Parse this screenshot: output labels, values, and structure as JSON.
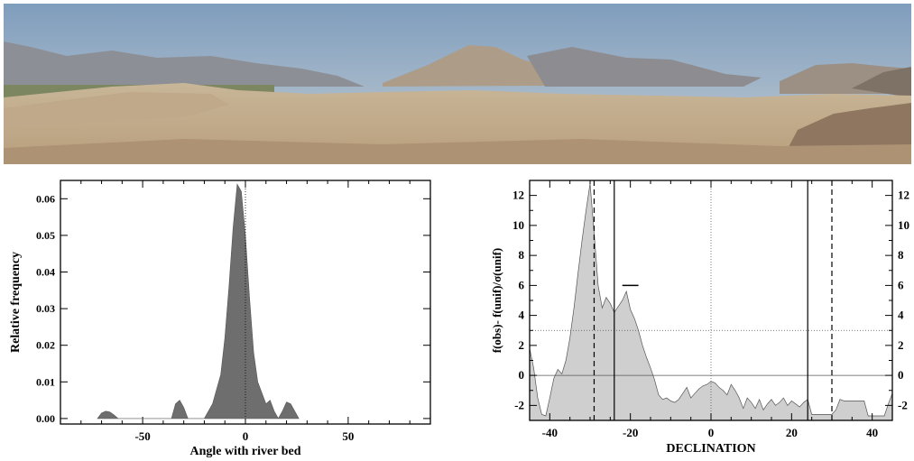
{
  "chart_data": [
    {
      "type": "area",
      "title": "",
      "xlabel": "Angle with river bed",
      "ylabel": "Relative frequency",
      "xlim": [
        -90,
        90
      ],
      "ylim": [
        -0.0015,
        0.065
      ],
      "xticks": [
        -50,
        0,
        50
      ],
      "yticks": [
        0.0,
        0.01,
        0.02,
        0.03,
        0.04,
        0.05,
        0.06
      ],
      "ytick_labels": [
        "0.00",
        "0.01",
        "0.02",
        "0.03",
        "0.04",
        "0.05",
        "0.06"
      ],
      "vline_dotted": 0,
      "color": "#6e6e6e",
      "x": [
        -72,
        -70,
        -68,
        -66,
        -64,
        -62,
        -36,
        -34,
        -32,
        -30,
        -28,
        -20,
        -16,
        -12,
        -10,
        -8,
        -6,
        -4,
        -2,
        0,
        2,
        4,
        6,
        8,
        10,
        12,
        14,
        16,
        18,
        20,
        22,
        24,
        26
      ],
      "y": [
        0.0,
        0.0015,
        0.002,
        0.0018,
        0.001,
        0.0,
        0.0,
        0.004,
        0.005,
        0.003,
        0.0,
        0.0,
        0.004,
        0.012,
        0.022,
        0.036,
        0.052,
        0.064,
        0.062,
        0.05,
        0.033,
        0.018,
        0.01,
        0.007,
        0.004,
        0.005,
        0.002,
        0.0,
        0.002,
        0.0045,
        0.004,
        0.002,
        0.0
      ]
    },
    {
      "type": "area",
      "title": "",
      "xlabel": "DECLINATION",
      "ylabel": "f(obs)- f(unif)/σ(unif)",
      "xlim": [
        -45,
        45
      ],
      "ylim": [
        -3,
        13
      ],
      "xticks": [
        -40,
        -20,
        0,
        20,
        40
      ],
      "yticks": [
        -2,
        0,
        2,
        4,
        6,
        8,
        10,
        12
      ],
      "hline_dotted": 3,
      "hline_solid": 0,
      "vlines_solid": [
        -24,
        24
      ],
      "vlines_dashed": [
        -29,
        30
      ],
      "vline_dotted": 0,
      "marker_segment": {
        "x": [
          -22,
          -18
        ],
        "y": 6
      },
      "color": "#cfcfcf",
      "x": [
        -45,
        -44,
        -43,
        -42,
        -41,
        -40,
        -39,
        -38,
        -37,
        -36,
        -35,
        -34,
        -33,
        -32,
        -31,
        -30,
        -29,
        -28,
        -27,
        -26,
        -25,
        -24,
        -23,
        -22,
        -21,
        -20,
        -19,
        -18,
        -17,
        -16,
        -15,
        -14,
        -13,
        -12,
        -11,
        -10,
        -9,
        -8,
        -7,
        -6,
        -5,
        -4,
        -3,
        -2,
        -1,
        0,
        1,
        2,
        3,
        4,
        5,
        6,
        7,
        8,
        9,
        10,
        11,
        12,
        13,
        14,
        15,
        16,
        17,
        18,
        19,
        20,
        21,
        22,
        23,
        24,
        25,
        26,
        27,
        28,
        29,
        30,
        31,
        32,
        33,
        34,
        35,
        36,
        37,
        38,
        39,
        40,
        41,
        42,
        43,
        44,
        45
      ],
      "y": [
        1.8,
        0.5,
        -1.5,
        -2.6,
        -2.7,
        -1.5,
        -0.2,
        0.4,
        0.1,
        1.0,
        2.5,
        4.5,
        6.8,
        9.0,
        11.0,
        12.8,
        9.5,
        6.0,
        4.5,
        5.2,
        4.8,
        4.2,
        4.6,
        5.0,
        5.6,
        4.4,
        3.8,
        3.0,
        2.0,
        1.2,
        0.5,
        -0.3,
        -1.3,
        -1.6,
        -1.5,
        -1.7,
        -1.8,
        -1.6,
        -1.2,
        -0.8,
        -1.5,
        -1.2,
        -0.9,
        -0.7,
        -0.6,
        -0.4,
        -0.5,
        -0.8,
        -1.0,
        -1.3,
        -0.6,
        -1.0,
        -1.5,
        -2.2,
        -1.5,
        -1.8,
        -2.2,
        -1.6,
        -2.3,
        -1.9,
        -1.6,
        -2.0,
        -1.8,
        -1.5,
        -2.0,
        -1.7,
        -1.9,
        -2.1,
        -1.8,
        -1.6,
        -2.6,
        -2.6,
        -2.6,
        -2.6,
        -2.6,
        -2.6,
        -2.3,
        -1.6,
        -1.7,
        -1.7,
        -1.7,
        -1.7,
        -1.7,
        -1.7,
        -2.7,
        -2.7,
        -2.7,
        -2.7,
        -2.7,
        -1.9,
        -1.2
      ]
    }
  ]
}
